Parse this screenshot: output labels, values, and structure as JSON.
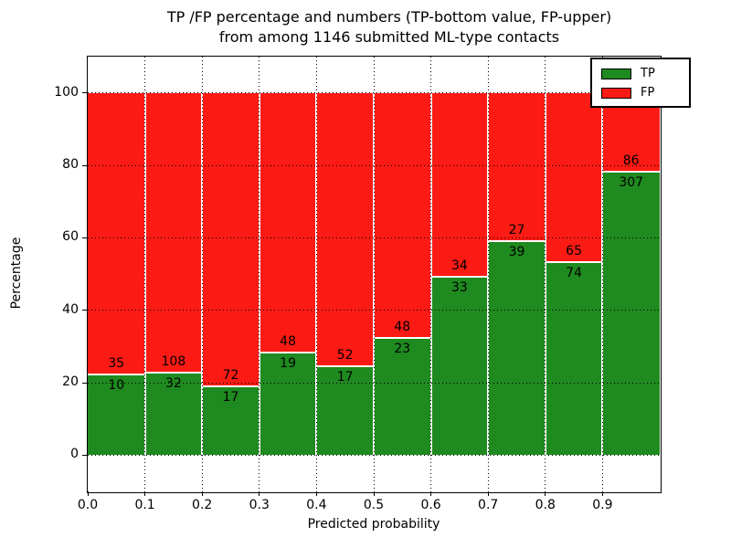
{
  "figure": {
    "title_line1": "TP /FP percentage and numbers (TP-bottom value, FP-upper)",
    "title_line2": "from among 1146 submitted ML-type contacts"
  },
  "chart_data": {
    "type": "bar",
    "subtype": "stacked-100-percent",
    "title": "TP /FP percentage and numbers (TP-bottom value, FP-upper) from among 1146 submitted ML-type contacts",
    "xlabel": "Predicted probability",
    "ylabel": "Percentage",
    "xlim": [
      0.0,
      1.0
    ],
    "ylim": [
      -10,
      110
    ],
    "x_tick_labels": [
      "0.0",
      "0.1",
      "0.2",
      "0.3",
      "0.4",
      "0.5",
      "0.6",
      "0.7",
      "0.8",
      "0.9"
    ],
    "x_tick_values": [
      0.0,
      0.1,
      0.2,
      0.3,
      0.4,
      0.5,
      0.6,
      0.7,
      0.8,
      0.9
    ],
    "y_tick_values": [
      0,
      20,
      40,
      60,
      80,
      100
    ],
    "grid": "dotted-black",
    "bin_width": 0.1,
    "bin_starts": [
      0.0,
      0.1,
      0.2,
      0.3,
      0.4,
      0.5,
      0.6,
      0.7,
      0.8,
      0.9
    ],
    "series": [
      {
        "name": "TP",
        "counts": [
          10,
          32,
          17,
          19,
          17,
          23,
          33,
          39,
          74,
          307
        ],
        "color": "#1f8a1f"
      },
      {
        "name": "FP",
        "counts": [
          35,
          108,
          72,
          48,
          52,
          48,
          34,
          27,
          65,
          86
        ],
        "color": "#fc1b14"
      }
    ],
    "total_contacts": 1146,
    "legend": {
      "position": "upper-right",
      "entries": [
        {
          "label": "TP",
          "color": "#1f8a1f"
        },
        {
          "label": "FP",
          "color": "#fc1b14"
        }
      ]
    }
  }
}
